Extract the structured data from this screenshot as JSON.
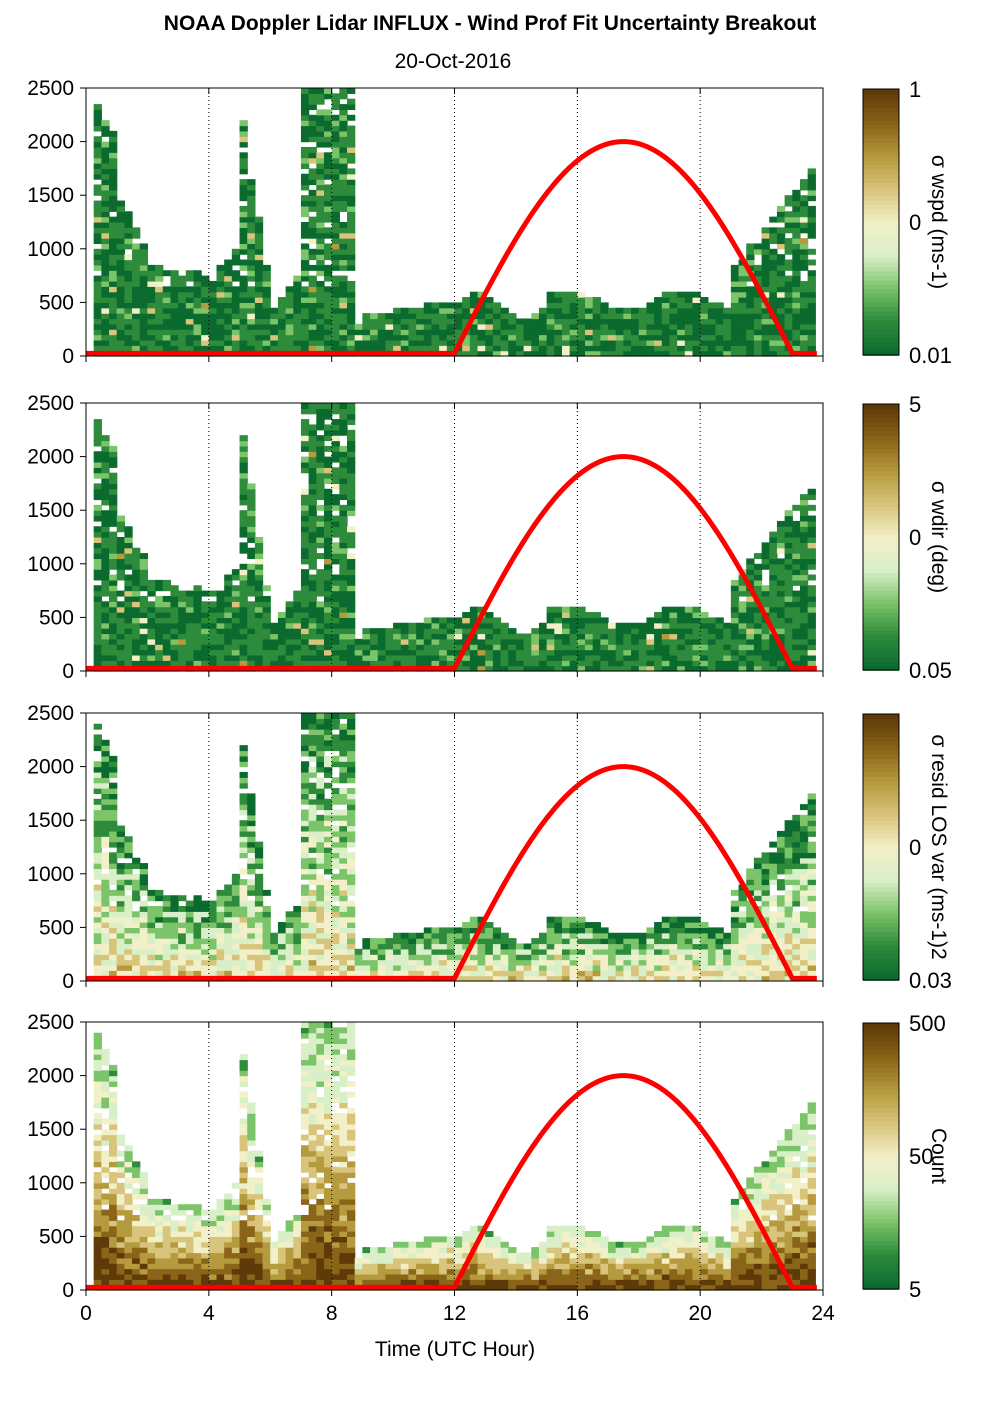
{
  "figure": {
    "title": "NOAA Doppler Lidar INFLUX - Wind Prof Fit Uncertainty Breakout",
    "subtitle": "20-Oct-2016",
    "xlabel": "Time (UTC Hour)"
  },
  "chart_data": [
    {
      "type": "heatmap",
      "panel": 1,
      "x_range": [
        0,
        24
      ],
      "y_range": [
        0,
        2500
      ],
      "x_ticks": [
        "0",
        "4",
        "8",
        "12",
        "16",
        "20",
        "24"
      ],
      "y_ticks": [
        "0",
        "500",
        "1000",
        "1500",
        "2000",
        "2500"
      ],
      "colorbar": {
        "label": "σ wspd (ms-1)",
        "ticks": [
          "1",
          "0",
          "0.01"
        ],
        "scale": "log"
      },
      "sun_curve": {
        "start_hour": 12.0,
        "peak_hour": 17.5,
        "peak_value": 2000,
        "end_hour": 23.0
      }
    },
    {
      "type": "heatmap",
      "panel": 2,
      "x_range": [
        0,
        24
      ],
      "y_range": [
        0,
        2500
      ],
      "x_ticks": [
        "0",
        "4",
        "8",
        "12",
        "16",
        "20",
        "24"
      ],
      "y_ticks": [
        "0",
        "500",
        "1000",
        "1500",
        "2000",
        "2500"
      ],
      "colorbar": {
        "label": "σ wdir (deg)",
        "ticks": [
          "5",
          "0",
          "0.05"
        ],
        "scale": "log"
      },
      "sun_curve": {
        "start_hour": 12.0,
        "peak_hour": 17.5,
        "peak_value": 2000,
        "end_hour": 23.0
      }
    },
    {
      "type": "heatmap",
      "panel": 3,
      "x_range": [
        0,
        24
      ],
      "y_range": [
        0,
        2500
      ],
      "x_ticks": [
        "0",
        "4",
        "8",
        "12",
        "16",
        "20",
        "24"
      ],
      "y_ticks": [
        "0",
        "500",
        "1000",
        "1500",
        "2000",
        "2500"
      ],
      "colorbar": {
        "label": "σ resid LOS var (ms-1)2",
        "ticks": [
          "0",
          "0.03"
        ],
        "scale": "log"
      },
      "sun_curve": {
        "start_hour": 12.0,
        "peak_hour": 17.5,
        "peak_value": 2000,
        "end_hour": 23.0
      }
    },
    {
      "type": "heatmap",
      "panel": 4,
      "x_range": [
        0,
        24
      ],
      "y_range": [
        0,
        2500
      ],
      "x_ticks": [
        "0",
        "4",
        "8",
        "12",
        "16",
        "20",
        "24"
      ],
      "y_ticks": [
        "0",
        "500",
        "1000",
        "1500",
        "2000",
        "2500"
      ],
      "colorbar": {
        "label": "Count",
        "ticks": [
          "500",
          "50",
          "5"
        ],
        "scale": "log"
      },
      "sun_curve": {
        "start_hour": 12.0,
        "peak_hour": 17.5,
        "peak_value": 2000,
        "end_hour": 23.0
      }
    }
  ],
  "colors": {
    "colormap": [
      "#0b6b2e",
      "#2e8b3c",
      "#7cc46a",
      "#d9efc8",
      "#f2f0c8",
      "#d8c47a",
      "#b59a3e",
      "#8a6418",
      "#5e3a08"
    ],
    "sun_curve": "#ff0000",
    "axis": "#000000"
  }
}
